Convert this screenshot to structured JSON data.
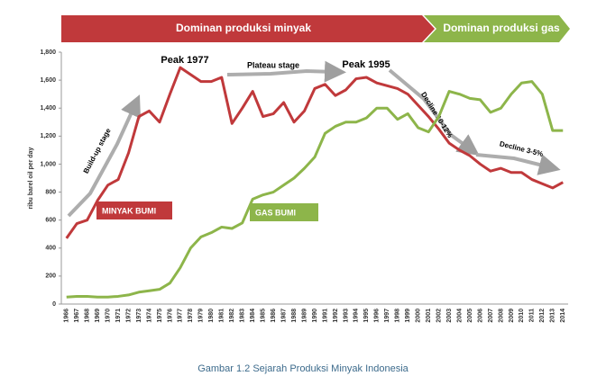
{
  "chart_data": {
    "type": "line",
    "banners": [
      "Dominan produksi minyak",
      "Dominan produksi gas"
    ],
    "y_label": "ribu barel oil per day",
    "annotations": [
      "Peak 1977",
      "Plateau stage",
      "Peak 1995",
      "Build-up stage",
      "Decline 10-12%",
      "Decline 3-5%"
    ],
    "caption": "Gambar 1.2 Sejarah Produksi Minyak Indonesia",
    "categories": [
      "1966",
      "1967",
      "1968",
      "1969",
      "1970",
      "1971",
      "1972",
      "1973",
      "1974",
      "1975",
      "1976",
      "1977",
      "1978",
      "1979",
      "1980",
      "1981",
      "1982",
      "1983",
      "1984",
      "1985",
      "1986",
      "1987",
      "1988",
      "1989",
      "1990",
      "1991",
      "1992",
      "1993",
      "1994",
      "1995",
      "1996",
      "1997",
      "1998",
      "1999",
      "2000",
      "2001",
      "2002",
      "2003",
      "2004",
      "2005",
      "2006",
      "2007",
      "2008",
      "2009",
      "2010",
      "2011",
      "2012",
      "2013",
      "2014"
    ],
    "series": [
      {
        "name": "MINYAK BUMI",
        "color": "#c0393b",
        "values": [
          470,
          575,
          600,
          740,
          850,
          890,
          1080,
          1340,
          1380,
          1300,
          1500,
          1690,
          1640,
          1590,
          1590,
          1620,
          1290,
          1400,
          1520,
          1340,
          1360,
          1440,
          1300,
          1380,
          1540,
          1570,
          1490,
          1530,
          1610,
          1620,
          1580,
          1560,
          1540,
          1500,
          1420,
          1340,
          1250,
          1150,
          1100,
          1060,
          1000,
          950,
          970,
          940,
          940,
          890,
          860,
          830,
          870
        ]
      },
      {
        "name": "GAS BUMI",
        "color": "#8db54a",
        "values": [
          50,
          55,
          55,
          50,
          50,
          55,
          65,
          85,
          95,
          105,
          150,
          260,
          400,
          480,
          510,
          550,
          540,
          580,
          750,
          780,
          800,
          850,
          900,
          970,
          1050,
          1220,
          1270,
          1300,
          1300,
          1330,
          1400,
          1400,
          1320,
          1360,
          1260,
          1230,
          1340,
          1520,
          1500,
          1470,
          1460,
          1370,
          1400,
          1500,
          1580,
          1590,
          1500,
          1240,
          1240
        ]
      }
    ],
    "ylim": [
      0,
      1800
    ],
    "yticks": [
      0,
      200,
      400,
      600,
      800,
      {
        "value": 1000,
        "label": "1,000"
      },
      {
        "value": 1200,
        "label": "1,200"
      },
      {
        "value": 1400,
        "label": "1,400"
      },
      {
        "value": 1600,
        "label": "1,600"
      },
      {
        "value": 1800,
        "label": "1,800"
      }
    ],
    "grid": false
  }
}
